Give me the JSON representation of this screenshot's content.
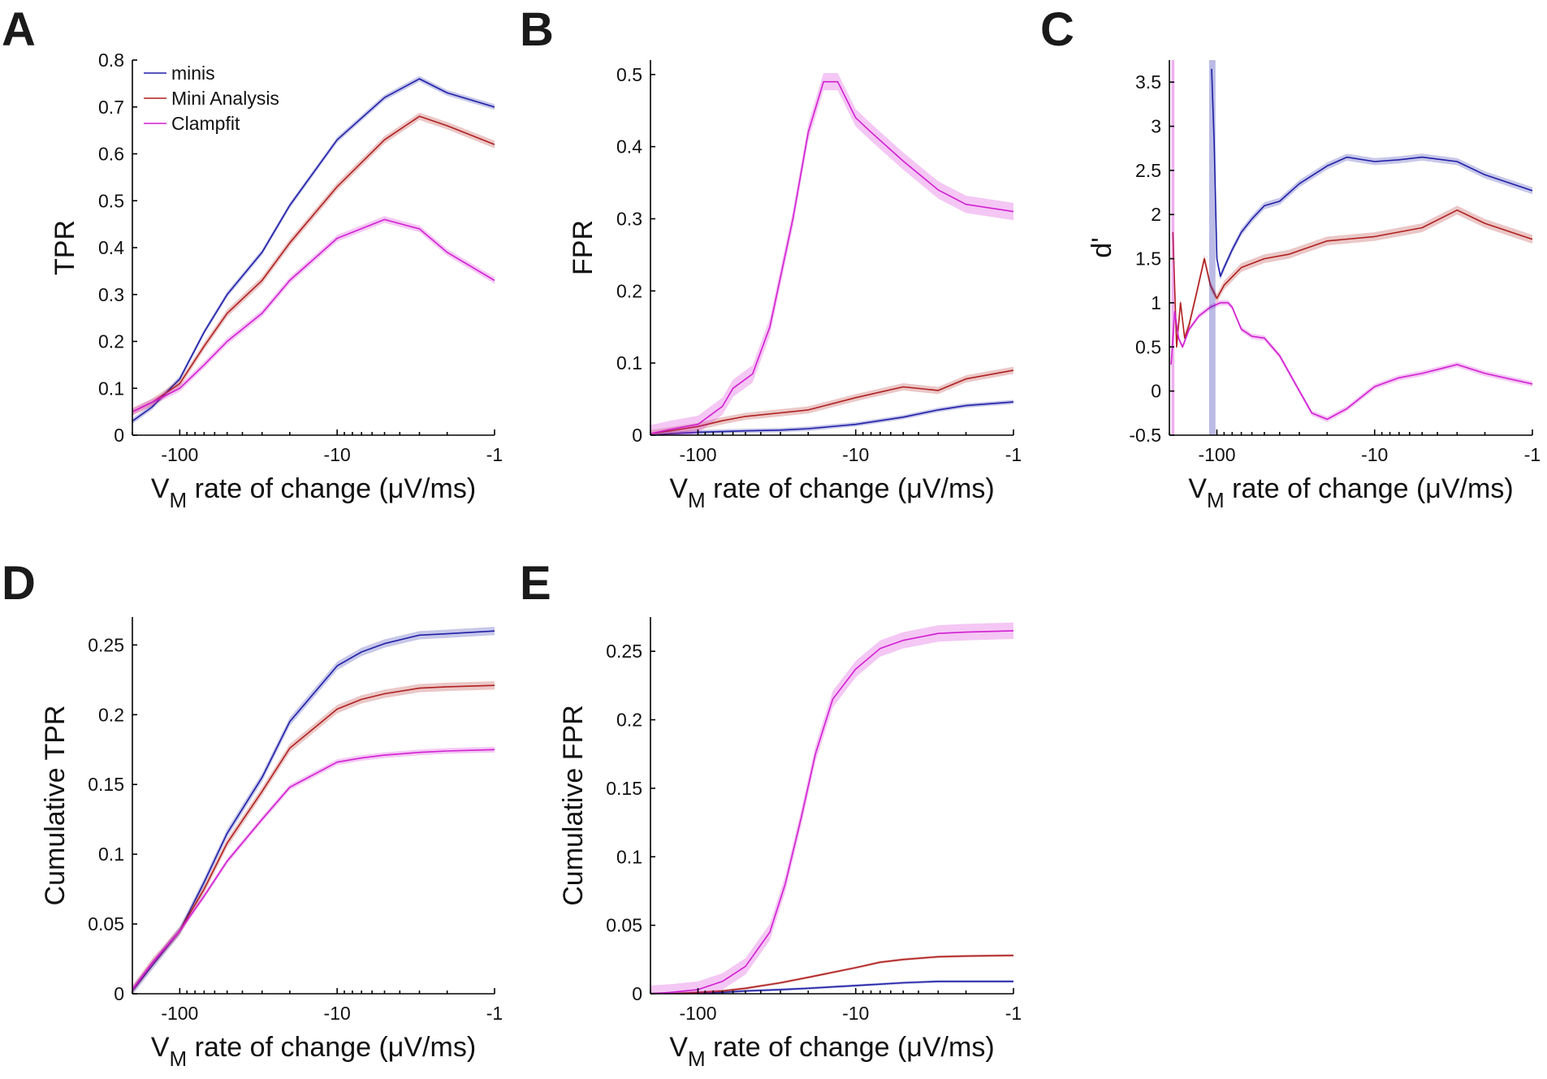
{
  "figure": {
    "colors": {
      "minis": "#1f1fa8",
      "mini_analysis": "#b01f1f",
      "clampfit": "#d21ed2"
    }
  },
  "chart_data": [
    {
      "panel": "A",
      "type": "line",
      "xscale": "log",
      "x_direction": "negative",
      "xlabel_main": "V",
      "xlabel_sub": "M",
      "xlabel_rest": " rate of change (μV/ms)",
      "ylabel": "TPR",
      "xlim": [
        -200,
        -1
      ],
      "ylim": [
        0,
        0.8
      ],
      "xticks": [
        -100,
        -10,
        -1
      ],
      "xtick_labels": [
        "-100",
        "-10",
        "-1"
      ],
      "yticks": [
        0,
        0.1,
        0.2,
        0.3,
        0.4,
        0.5,
        0.6,
        0.7,
        0.8
      ],
      "ytick_labels": [
        "0",
        "0.1",
        "0.2",
        "0.3",
        "0.4",
        "0.5",
        "0.6",
        "0.7",
        "0.8"
      ],
      "legend": {
        "position": "top-left",
        "entries": [
          "minis",
          "Mini Analysis",
          "Clampfit"
        ]
      },
      "series": [
        {
          "name": "minis",
          "x": [
            -200,
            -150,
            -100,
            -70,
            -50,
            -30,
            -20,
            -10,
            -5,
            -3,
            -2,
            -1
          ],
          "y": [
            0.03,
            0.06,
            0.12,
            0.22,
            0.3,
            0.39,
            0.49,
            0.63,
            0.72,
            0.76,
            0.73,
            0.7
          ],
          "band": 0.006
        },
        {
          "name": "Mini Analysis",
          "x": [
            -200,
            -150,
            -100,
            -70,
            -50,
            -30,
            -20,
            -10,
            -5,
            -3,
            -2,
            -1
          ],
          "y": [
            0.05,
            0.07,
            0.11,
            0.19,
            0.26,
            0.33,
            0.41,
            0.53,
            0.63,
            0.68,
            0.66,
            0.62
          ],
          "band": 0.008
        },
        {
          "name": "Clampfit",
          "x": [
            -200,
            -150,
            -100,
            -70,
            -50,
            -30,
            -20,
            -10,
            -5,
            -3,
            -2,
            -1
          ],
          "y": [
            0.05,
            0.07,
            0.1,
            0.15,
            0.2,
            0.26,
            0.33,
            0.42,
            0.46,
            0.44,
            0.39,
            0.33
          ],
          "band": 0.007
        }
      ]
    },
    {
      "panel": "B",
      "type": "line",
      "xscale": "log",
      "x_direction": "negative",
      "xlabel_main": "V",
      "xlabel_sub": "M",
      "xlabel_rest": " rate of change (μV/ms)",
      "ylabel": "FPR",
      "xlim": [
        -200,
        -1
      ],
      "ylim": [
        0,
        0.52
      ],
      "xticks": [
        -100,
        -10,
        -1
      ],
      "xtick_labels": [
        "-100",
        "-10",
        "-1"
      ],
      "yticks": [
        0,
        0.1,
        0.2,
        0.3,
        0.4,
        0.5
      ],
      "ytick_labels": [
        "0",
        "0.1",
        "0.2",
        "0.3",
        "0.4",
        "0.5"
      ],
      "series": [
        {
          "name": "minis",
          "x": [
            -200,
            -150,
            -100,
            -70,
            -50,
            -30,
            -20,
            -10,
            -5,
            -3,
            -2,
            -1
          ],
          "y": [
            0,
            0.002,
            0.004,
            0.005,
            0.006,
            0.007,
            0.009,
            0.015,
            0.025,
            0.035,
            0.041,
            0.046
          ],
          "band": 0.003
        },
        {
          "name": "Mini Analysis",
          "x": [
            -200,
            -150,
            -100,
            -70,
            -50,
            -30,
            -20,
            -10,
            -5,
            -3,
            -2,
            -1
          ],
          "y": [
            0.002,
            0.006,
            0.012,
            0.02,
            0.026,
            0.031,
            0.035,
            0.052,
            0.067,
            0.062,
            0.078,
            0.09
          ],
          "band": 0.005
        },
        {
          "name": "Clampfit",
          "x": [
            -200,
            -150,
            -100,
            -70,
            -60,
            -45,
            -35,
            -25,
            -20,
            -16,
            -13,
            -10,
            -8,
            -5,
            -3,
            -2,
            -1
          ],
          "y": [
            0.002,
            0.008,
            0.015,
            0.04,
            0.065,
            0.085,
            0.15,
            0.3,
            0.42,
            0.49,
            0.49,
            0.44,
            0.42,
            0.38,
            0.34,
            0.32,
            0.31
          ],
          "band": 0.012
        }
      ]
    },
    {
      "panel": "C",
      "type": "line",
      "xscale": "log",
      "x_direction": "negative",
      "xlabel_main": "V",
      "xlabel_sub": "M",
      "xlabel_rest": " rate of change (μV/ms)",
      "ylabel": "d'",
      "xlim": [
        -200,
        -1
      ],
      "ylim": [
        -0.5,
        3.75
      ],
      "xticks": [
        -100,
        -10,
        -1
      ],
      "xtick_labels": [
        "-100",
        "-10",
        "-1"
      ],
      "yticks": [
        -0.5,
        0,
        0.5,
        1,
        1.5,
        2,
        2.5,
        3,
        3.5
      ],
      "ytick_labels": [
        "-0.5",
        "0",
        "0.5",
        "1",
        "1.5",
        "2",
        "2.5",
        "3",
        "3.5"
      ],
      "series": [
        {
          "name": "minis",
          "x": [
            -108,
            -104,
            -100,
            -95,
            -90,
            -80,
            -70,
            -60,
            -50,
            -40,
            -30,
            -20,
            -15,
            -10,
            -7,
            -5,
            -3,
            -2,
            -1
          ],
          "y": [
            3.65,
            2.8,
            1.5,
            1.3,
            1.4,
            1.6,
            1.8,
            1.95,
            2.1,
            2.15,
            2.35,
            2.55,
            2.65,
            2.6,
            2.62,
            2.65,
            2.6,
            2.45,
            2.27
          ],
          "band": 0.04
        },
        {
          "name": "Mini Analysis",
          "x": [
            -190,
            -180,
            -170,
            -160,
            -150,
            -135,
            -120,
            -110,
            -100,
            -90,
            -70,
            -50,
            -35,
            -20,
            -10,
            -5,
            -3,
            -2,
            -1
          ],
          "y": [
            1.8,
            0.5,
            1.0,
            0.6,
            0.75,
            1.1,
            1.5,
            1.2,
            1.05,
            1.2,
            1.4,
            1.5,
            1.55,
            1.7,
            1.75,
            1.85,
            2.05,
            1.9,
            1.72
          ],
          "band": 0.05
        },
        {
          "name": "Clampfit",
          "x": [
            -195,
            -185,
            -175,
            -165,
            -150,
            -130,
            -110,
            -95,
            -85,
            -80,
            -70,
            -60,
            -50,
            -40,
            -30,
            -25,
            -20,
            -15,
            -10,
            -7,
            -5,
            -3,
            -2,
            -1
          ],
          "y": [
            0.3,
            0.9,
            0.6,
            0.5,
            0.7,
            0.85,
            0.95,
            1.0,
            1.0,
            0.95,
            0.7,
            0.62,
            0.6,
            0.4,
            0.0,
            -0.25,
            -0.32,
            -0.2,
            0.05,
            0.15,
            0.2,
            0.3,
            0.2,
            0.08
          ],
          "band": 0.03
        }
      ]
    },
    {
      "panel": "D",
      "type": "line",
      "xscale": "log",
      "x_direction": "negative",
      "xlabel_main": "V",
      "xlabel_sub": "M",
      "xlabel_rest": " rate of change (μV/ms)",
      "ylabel": "Cumulative TPR",
      "xlim": [
        -200,
        -1
      ],
      "ylim": [
        0,
        0.27
      ],
      "xticks": [
        -100,
        -10,
        -1
      ],
      "xtick_labels": [
        "-100",
        "-10",
        "-1"
      ],
      "yticks": [
        0,
        0.05,
        0.1,
        0.15,
        0.2,
        0.25
      ],
      "ytick_labels": [
        "0",
        "0.05",
        "0.1",
        "0.15",
        "0.2",
        "0.25"
      ],
      "series": [
        {
          "name": "minis",
          "x": [
            -200,
            -150,
            -100,
            -70,
            -50,
            -30,
            -20,
            -10,
            -7,
            -5,
            -3,
            -2,
            -1
          ],
          "y": [
            0.002,
            0.02,
            0.045,
            0.08,
            0.115,
            0.155,
            0.195,
            0.235,
            0.245,
            0.251,
            0.257,
            0.258,
            0.26
          ],
          "band": 0.003
        },
        {
          "name": "Mini Analysis",
          "x": [
            -200,
            -150,
            -100,
            -70,
            -50,
            -30,
            -20,
            -10,
            -7,
            -5,
            -3,
            -2,
            -1
          ],
          "y": [
            0.003,
            0.022,
            0.045,
            0.075,
            0.108,
            0.145,
            0.176,
            0.204,
            0.211,
            0.215,
            0.219,
            0.22,
            0.221
          ],
          "band": 0.003
        },
        {
          "name": "Clampfit",
          "x": [
            -200,
            -150,
            -100,
            -70,
            -50,
            -30,
            -20,
            -10,
            -7,
            -5,
            -3,
            -2,
            -1
          ],
          "y": [
            0.003,
            0.022,
            0.045,
            0.07,
            0.095,
            0.125,
            0.148,
            0.166,
            0.169,
            0.171,
            0.173,
            0.174,
            0.175
          ],
          "band": 0.002
        }
      ]
    },
    {
      "panel": "E",
      "type": "line",
      "xscale": "log",
      "x_direction": "negative",
      "xlabel_main": "V",
      "xlabel_sub": "M",
      "xlabel_rest": " rate of change (μV/ms)",
      "ylabel": "Cumulative FPR",
      "xlim": [
        -200,
        -1
      ],
      "ylim": [
        0,
        0.275
      ],
      "xticks": [
        -100,
        -10,
        -1
      ],
      "xtick_labels": [
        "-100",
        "-10",
        "-1"
      ],
      "yticks": [
        0,
        0.05,
        0.1,
        0.15,
        0.2,
        0.25
      ],
      "ytick_labels": [
        "0",
        "0.05",
        "0.1",
        "0.15",
        "0.2",
        "0.25"
      ],
      "series": [
        {
          "name": "minis",
          "x": [
            -200,
            -150,
            -100,
            -70,
            -50,
            -30,
            -20,
            -10,
            -7,
            -5,
            -3,
            -2,
            -1
          ],
          "y": [
            0,
            0,
            0.0005,
            0.001,
            0.002,
            0.003,
            0.004,
            0.006,
            0.007,
            0.008,
            0.009,
            0.009,
            0.009
          ],
          "band": 0.001
        },
        {
          "name": "Mini Analysis",
          "x": [
            -200,
            -150,
            -100,
            -70,
            -50,
            -30,
            -20,
            -10,
            -7,
            -5,
            -3,
            -2,
            -1
          ],
          "y": [
            0,
            0,
            0.001,
            0.002,
            0.004,
            0.008,
            0.012,
            0.019,
            0.023,
            0.025,
            0.027,
            0.0275,
            0.028
          ],
          "band": 0.001
        },
        {
          "name": "Clampfit",
          "x": [
            -200,
            -150,
            -100,
            -70,
            -50,
            -35,
            -28,
            -22,
            -18,
            -14,
            -10,
            -7,
            -5,
            -3,
            -2,
            -1
          ],
          "y": [
            0,
            0.001,
            0.003,
            0.009,
            0.02,
            0.045,
            0.08,
            0.13,
            0.175,
            0.215,
            0.237,
            0.252,
            0.258,
            0.263,
            0.264,
            0.265
          ],
          "band": 0.006
        }
      ]
    }
  ]
}
